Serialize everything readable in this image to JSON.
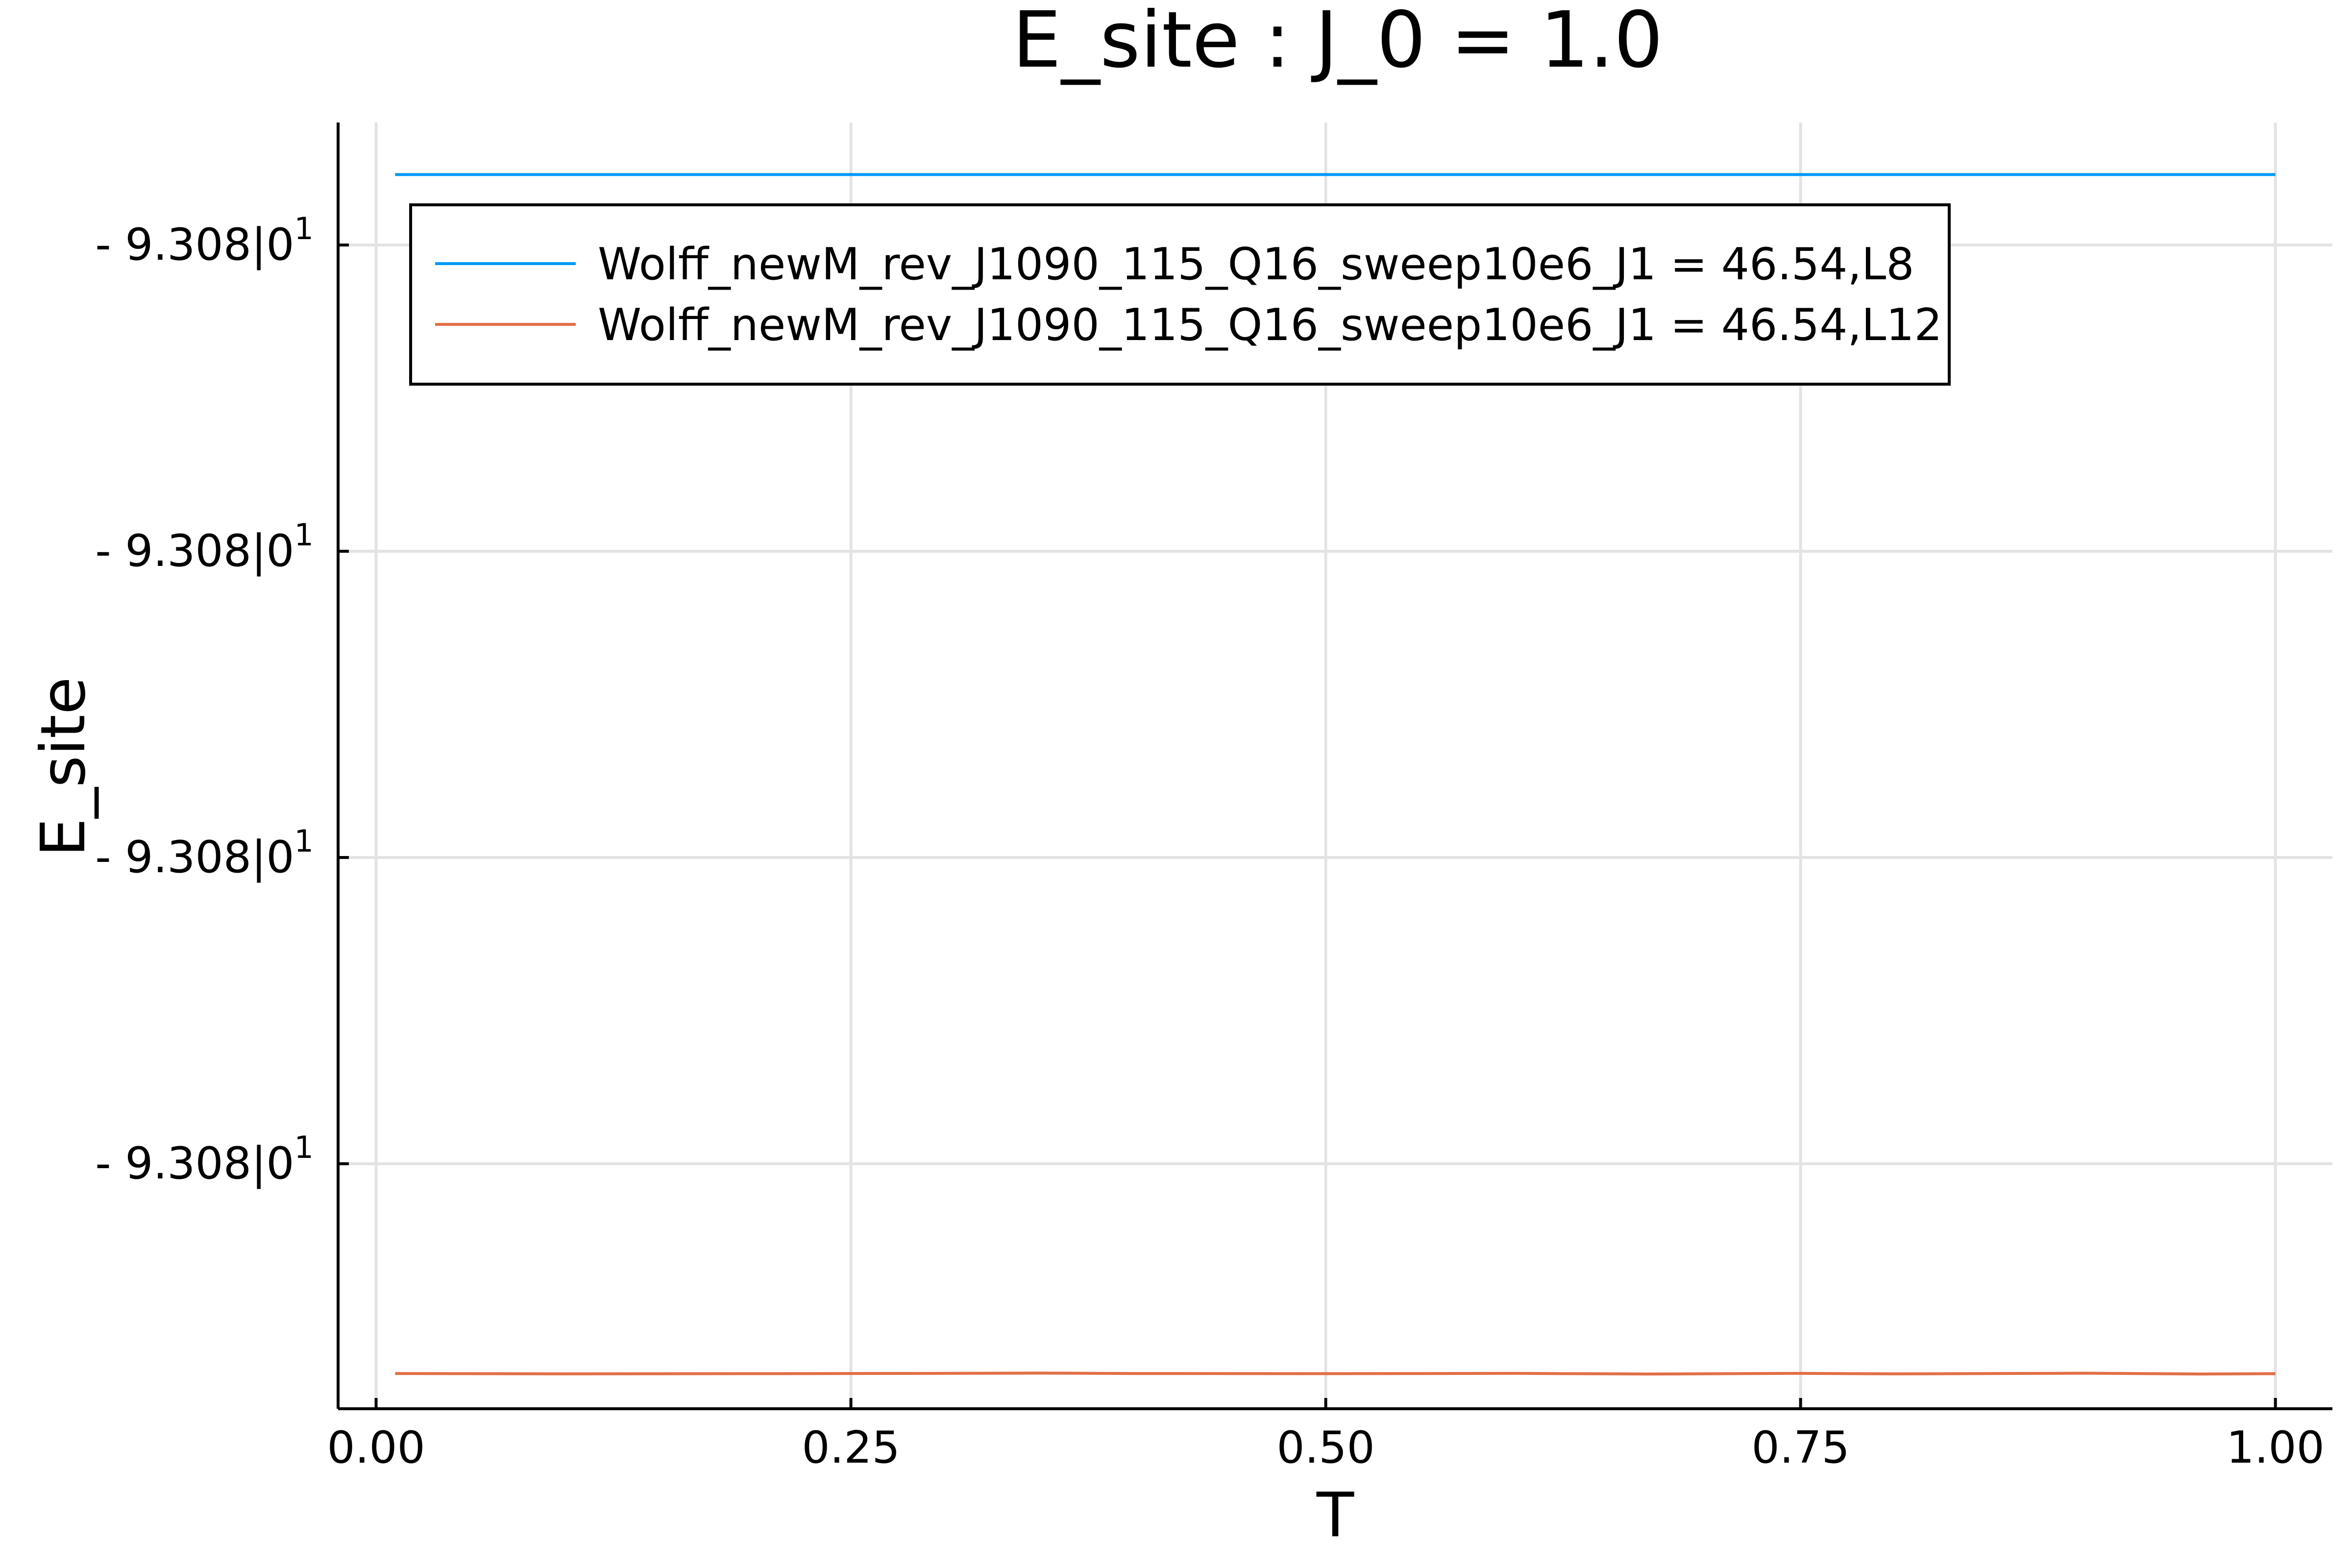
{
  "chart_data": {
    "type": "line",
    "title": "E_site : J_0 = 1.0",
    "xlabel": "T",
    "ylabel": "E_site",
    "xlim": [
      -0.02,
      1.03
    ],
    "xticks": [
      0.0,
      0.25,
      0.5,
      0.75,
      1.0
    ],
    "xtick_labels": [
      "0.00",
      "0.25",
      "0.50",
      "0.75",
      "1.00"
    ],
    "ylim": [
      -4.6,
      3.8
    ],
    "yticks": [
      3,
      1,
      -1,
      -3
    ],
    "ytick_labels": [
      {
        "mantissa": "- 9.308",
        "base": "|0",
        "exponent": "1"
      },
      {
        "mantissa": "- 9.308",
        "base": "|0",
        "exponent": "1"
      },
      {
        "mantissa": "- 9.308",
        "base": "|0",
        "exponent": "1"
      },
      {
        "mantissa": "- 9.308",
        "base": "|0",
        "exponent": "1"
      }
    ],
    "grid": true,
    "legend_position": "top-left",
    "series": [
      {
        "name": "Wolff_newM_rev_J1090_115_Q16_sweep10e6_J1 = 46.54,L8",
        "color": "#009af9",
        "x": [
          0.01,
          0.1,
          0.2,
          0.3,
          0.4,
          0.5,
          0.6,
          0.7,
          0.8,
          0.9,
          1.0
        ],
        "y": [
          3.46,
          3.46,
          3.46,
          3.46,
          3.46,
          3.46,
          3.46,
          3.46,
          3.46,
          3.46,
          3.46
        ]
      },
      {
        "name": "Wolff_newM_rev_J1090_115_Q16_sweep10e6_J1 = 46.54,L12",
        "color": "#e26f46",
        "x": [
          0.01,
          0.1,
          0.2,
          0.3,
          0.35,
          0.4,
          0.5,
          0.6,
          0.67,
          0.75,
          0.8,
          0.9,
          0.96,
          1.0
        ],
        "y": [
          -4.37,
          -4.372,
          -4.371,
          -4.369,
          -4.367,
          -4.37,
          -4.371,
          -4.369,
          -4.373,
          -4.369,
          -4.372,
          -4.368,
          -4.373,
          -4.371
        ]
      }
    ]
  }
}
